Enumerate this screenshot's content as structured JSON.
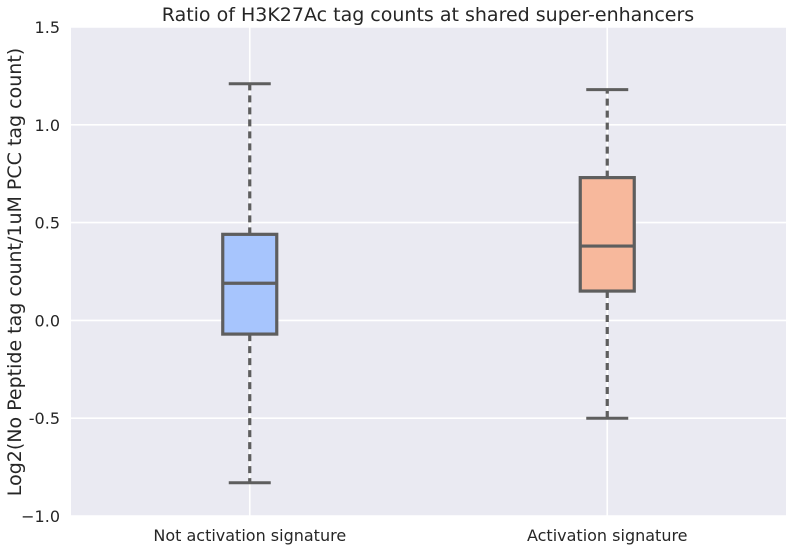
{
  "chart_data": {
    "type": "box",
    "title": "Ratio of H3K27Ac tag counts at shared super-enhancers",
    "xlabel": "",
    "ylabel": "Log2(No Peptide tag count/1uM PCC tag count)",
    "ylim": [
      -1.0,
      1.5
    ],
    "yticks": [
      -1.0,
      -0.5,
      0.0,
      0.5,
      1.0,
      1.5
    ],
    "ytick_labels": [
      "−1.0",
      "-0.5",
      "0.0",
      "0.5",
      "1.0",
      "1.5"
    ],
    "categories": [
      "Not activation signature",
      "Activation signature"
    ],
    "series": [
      {
        "category": "Not activation signature",
        "whislo": -0.83,
        "q1": -0.07,
        "med": 0.19,
        "q3": 0.44,
        "whishi": 1.21,
        "color": "#a7c5fd"
      },
      {
        "category": "Activation signature",
        "whislo": -0.5,
        "q1": 0.15,
        "med": 0.38,
        "q3": 0.73,
        "whishi": 1.18,
        "color": "#f7b89c"
      }
    ],
    "grid": true,
    "colors": {
      "background": "#eaeaf2",
      "grid": "#ffffff",
      "box_edge": "#5e5e5e"
    }
  }
}
